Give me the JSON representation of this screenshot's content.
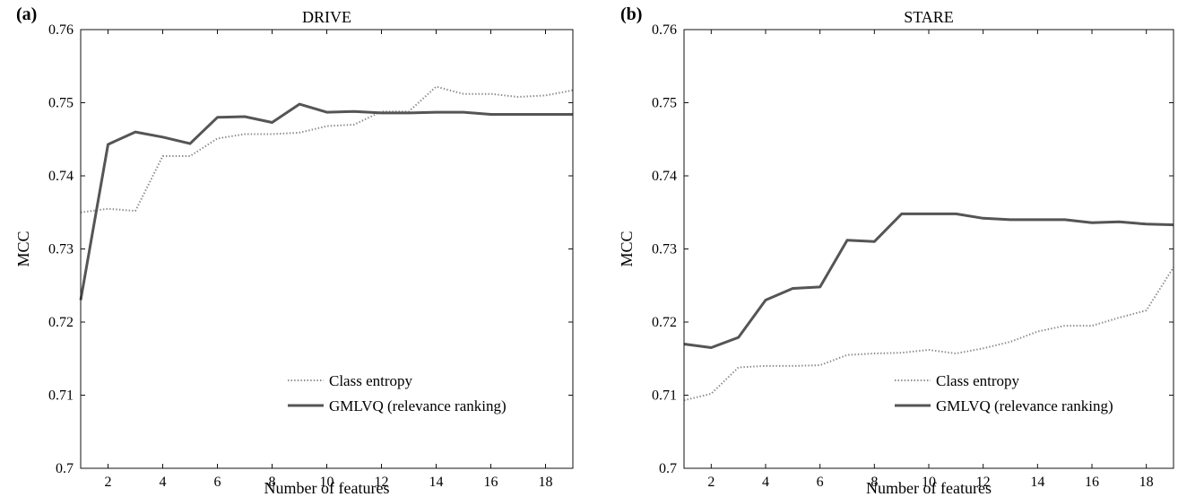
{
  "chart_data": [
    {
      "type": "line",
      "panel_label": "(a)",
      "title": "DRIVE",
      "xlabel": "Number of features",
      "ylabel": "MCC",
      "xlim": [
        1,
        19
      ],
      "ylim": [
        0.7,
        0.76
      ],
      "xticks": [
        2,
        4,
        6,
        8,
        10,
        12,
        14,
        16,
        18
      ],
      "xtick_labels": [
        "2",
        "4",
        "6",
        "8",
        "10",
        "12",
        "14",
        "16",
        "18"
      ],
      "yticks": [
        0.7,
        0.71,
        0.72,
        0.73,
        0.74,
        0.75,
        0.76
      ],
      "ytick_labels": [
        "0.7",
        "0.71",
        "0.72",
        "0.73",
        "0.74",
        "0.75",
        "0.76"
      ],
      "grid": false,
      "legend_position": "bottom-right",
      "series": [
        {
          "name": "Class entropy",
          "style": "dotted",
          "color": "#8a8a8a",
          "x": [
            1,
            2,
            3,
            4,
            5,
            6,
            7,
            8,
            9,
            10,
            11,
            12,
            13,
            14,
            15,
            16,
            17,
            18,
            19
          ],
          "y": [
            0.735,
            0.7355,
            0.7352,
            0.7427,
            0.7427,
            0.7451,
            0.7457,
            0.7457,
            0.7459,
            0.7468,
            0.747,
            0.7488,
            0.7488,
            0.7522,
            0.7512,
            0.7512,
            0.7508,
            0.751,
            0.7517
          ]
        },
        {
          "name": "GMLVQ (relevance ranking)",
          "style": "solid",
          "color": "#555555",
          "x": [
            1,
            2,
            3,
            4,
            5,
            6,
            7,
            8,
            9,
            10,
            11,
            12,
            13,
            14,
            15,
            16,
            17,
            18,
            19
          ],
          "y": [
            0.723,
            0.7443,
            0.746,
            0.7453,
            0.7444,
            0.748,
            0.7481,
            0.7473,
            0.7498,
            0.7487,
            0.7488,
            0.7486,
            0.7486,
            0.7487,
            0.7487,
            0.7484,
            0.7484,
            0.7484,
            0.7484
          ]
        }
      ]
    },
    {
      "type": "line",
      "panel_label": "(b)",
      "title": "STARE",
      "xlabel": "Number of features",
      "ylabel": "MCC",
      "xlim": [
        1,
        19
      ],
      "ylim": [
        0.7,
        0.76
      ],
      "xticks": [
        2,
        4,
        6,
        8,
        10,
        12,
        14,
        16,
        18
      ],
      "xtick_labels": [
        "2",
        "4",
        "6",
        "8",
        "10",
        "12",
        "14",
        "16",
        "18"
      ],
      "yticks": [
        0.7,
        0.71,
        0.72,
        0.73,
        0.74,
        0.75,
        0.76
      ],
      "ytick_labels": [
        "0.7",
        "0.71",
        "0.72",
        "0.73",
        "0.74",
        "0.75",
        "0.76"
      ],
      "grid": false,
      "legend_position": "bottom-right",
      "series": [
        {
          "name": "Class entropy",
          "style": "dotted",
          "color": "#8a8a8a",
          "x": [
            1,
            2,
            3,
            4,
            5,
            6,
            7,
            8,
            9,
            10,
            11,
            12,
            13,
            14,
            15,
            16,
            17,
            18,
            19
          ],
          "y": [
            0.7093,
            0.7102,
            0.7138,
            0.714,
            0.714,
            0.7141,
            0.7155,
            0.7157,
            0.7158,
            0.7162,
            0.7157,
            0.7164,
            0.7173,
            0.7187,
            0.7195,
            0.7195,
            0.7206,
            0.7216,
            0.7275
          ]
        },
        {
          "name": "GMLVQ (relevance ranking)",
          "style": "solid",
          "color": "#555555",
          "x": [
            1,
            2,
            3,
            4,
            5,
            6,
            7,
            8,
            9,
            10,
            11,
            12,
            13,
            14,
            15,
            16,
            17,
            18,
            19
          ],
          "y": [
            0.717,
            0.7165,
            0.7179,
            0.723,
            0.7246,
            0.7248,
            0.7312,
            0.731,
            0.7348,
            0.7348,
            0.7348,
            0.7342,
            0.734,
            0.734,
            0.734,
            0.7336,
            0.7337,
            0.7334,
            0.7333
          ]
        }
      ]
    }
  ]
}
